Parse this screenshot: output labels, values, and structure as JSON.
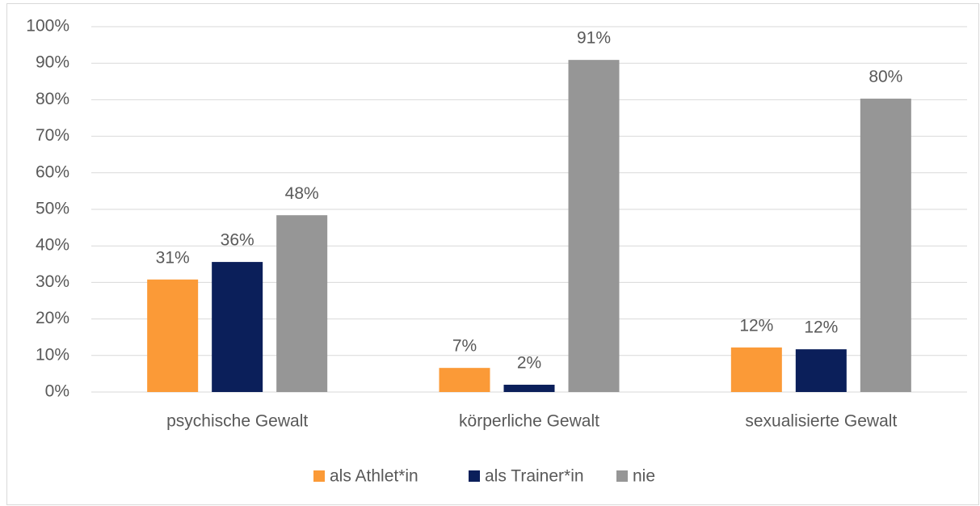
{
  "chart_data": {
    "type": "bar",
    "categories": [
      "psychische Gewalt",
      "körperliche Gewalt",
      "sexualisierte Gewalt"
    ],
    "series": [
      {
        "name": "als Athlet*in",
        "color": "#fb9a37",
        "values": [
          30.8,
          6.6,
          12.2
        ],
        "value_labels": [
          "31%",
          "7%",
          "12%"
        ]
      },
      {
        "name": "als Trainer*in",
        "color": "#0b1f5a",
        "values": [
          35.6,
          2.0,
          11.7
        ],
        "value_labels": [
          "36%",
          "2%",
          "12%"
        ]
      },
      {
        "name": "nie",
        "color": "#969696",
        "values": [
          48.4,
          90.9,
          80.3
        ],
        "value_labels": [
          "48%",
          "91%",
          "80%"
        ]
      }
    ],
    "ylim": [
      0,
      100
    ],
    "yticks": [
      {
        "value": 0,
        "label": "0%"
      },
      {
        "value": 10,
        "label": "10%"
      },
      {
        "value": 20,
        "label": "20%"
      },
      {
        "value": 30,
        "label": "30%"
      },
      {
        "value": 40,
        "label": "40%"
      },
      {
        "value": 50,
        "label": "50%"
      },
      {
        "value": 60,
        "label": "60%"
      },
      {
        "value": 70,
        "label": "70%"
      },
      {
        "value": 80,
        "label": "80%"
      },
      {
        "value": 90,
        "label": "90%"
      },
      {
        "value": 100,
        "label": "100%"
      }
    ],
    "grid": true,
    "legend": "bottom"
  }
}
